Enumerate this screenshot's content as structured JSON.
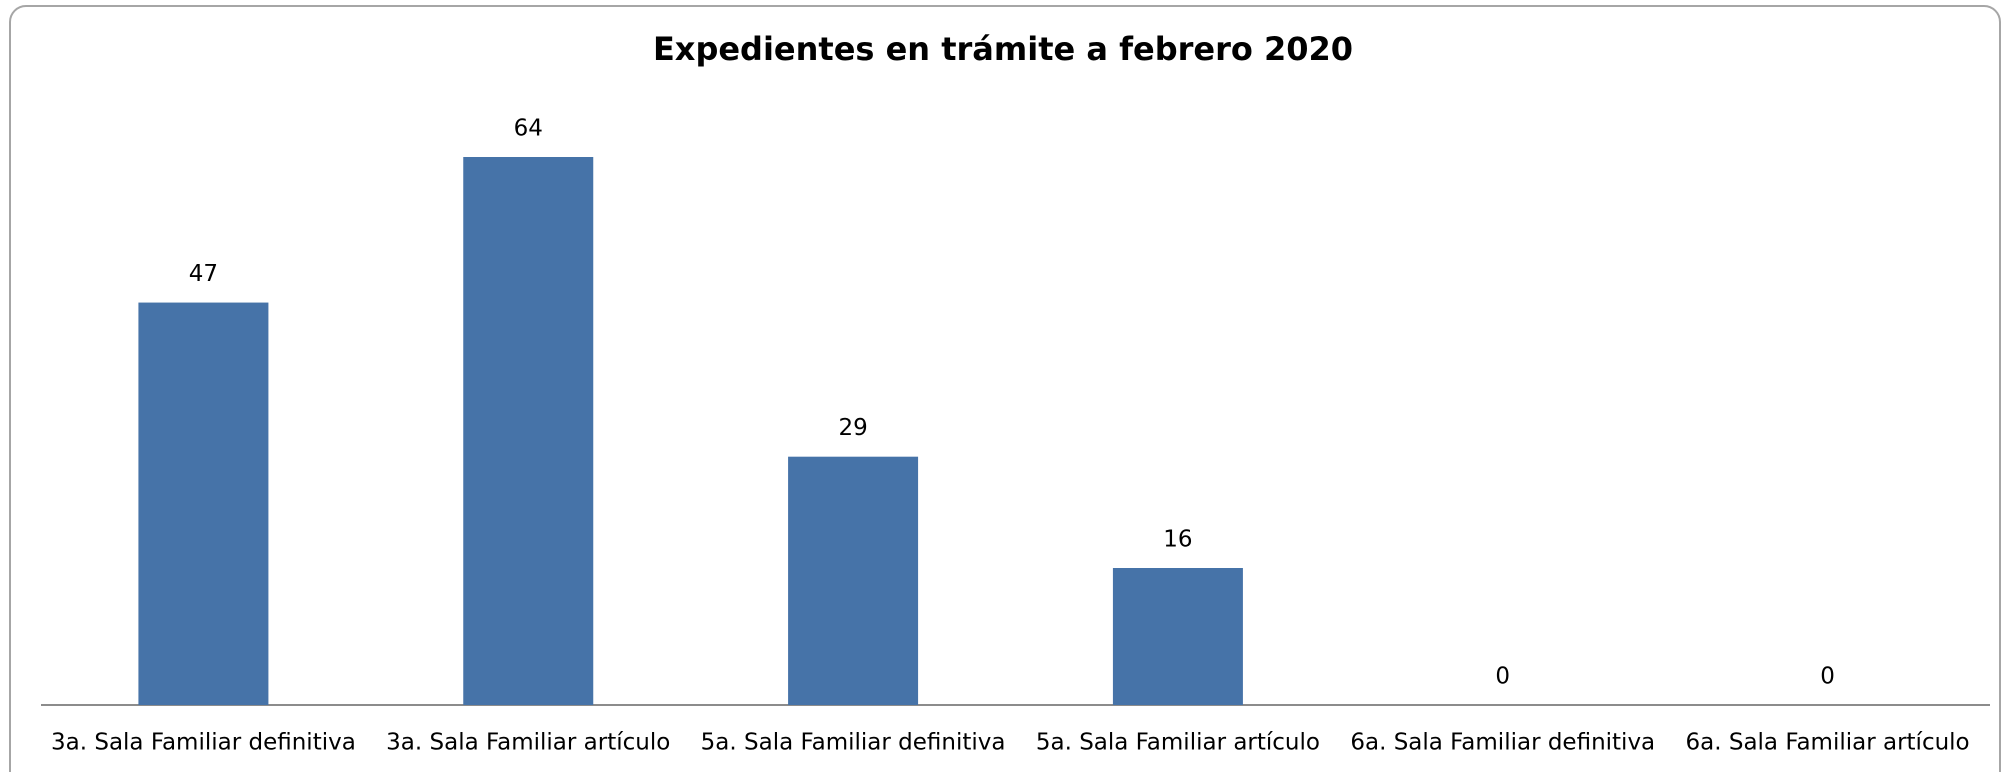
{
  "chart_data": {
    "type": "bar",
    "title": "Expedientes en trámite a febrero 2020",
    "categories": [
      "3a. Sala Familiar definitiva",
      "3a. Sala Familiar artículo",
      "5a. Sala Familiar definitiva",
      "5a. Sala Familiar artículo",
      "6a. Sala Familiar definitiva",
      "6a. Sala Familiar artículo"
    ],
    "values": [
      47,
      64,
      29,
      16,
      0,
      0
    ],
    "color": "#4673a8"
  }
}
